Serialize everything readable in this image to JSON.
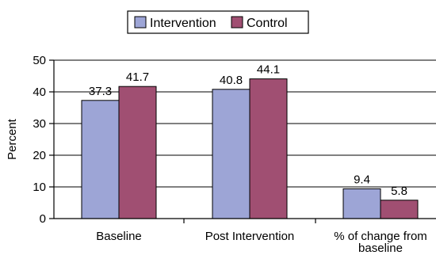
{
  "chart_data": {
    "type": "bar",
    "categories": [
      [
        "Baseline"
      ],
      [
        "Post Intervention"
      ],
      [
        "% of change from",
        "baseline"
      ]
    ],
    "series": [
      {
        "name": "Intervention",
        "color": "#9da5d6",
        "values": [
          37.3,
          40.8,
          9.4
        ],
        "labels": [
          "37.3",
          "40.8",
          "9.4"
        ]
      },
      {
        "name": "Control",
        "color": "#a04f72",
        "values": [
          41.7,
          44.1,
          5.8
        ],
        "labels": [
          "41.7",
          "44.1",
          "5.8"
        ]
      }
    ],
    "ylabel": "Percent",
    "xlabel": "",
    "ylim": [
      0,
      50
    ],
    "yticks": [
      0,
      10,
      20,
      30,
      40,
      50
    ],
    "grid": true,
    "legend_position": "top-center"
  }
}
